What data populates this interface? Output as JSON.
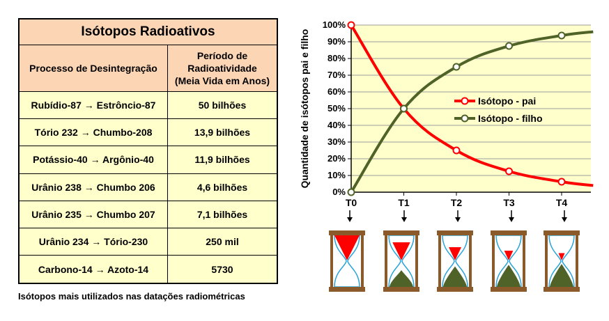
{
  "table": {
    "title": "Isótopos Radioativos",
    "col1_header": "Processo de Desintegração",
    "col2_header_lines": [
      "Período de",
      "Radioatividade",
      "(Meia Vida em Anos)"
    ],
    "rows": [
      {
        "process": "Rubídio-87 → Estrôncio-87",
        "half_life": "50 bilhões"
      },
      {
        "process": "Tório 232 → Chumbo-208",
        "half_life": "13,9 bilhões"
      },
      {
        "process": "Potássio-40 → Argônio-40",
        "half_life": "11,9 bilhões"
      },
      {
        "process": "Urânio 238 → Chumbo 206",
        "half_life": "4,6 bilhões"
      },
      {
        "process": "Urânio 235 → Chumbo 207",
        "half_life": "7,1 bilhões"
      },
      {
        "process": "Urânio 234 → Tório-230",
        "half_life": "250 mil"
      },
      {
        "process": "Carbono-14 → Azoto-14",
        "half_life": "5730"
      }
    ],
    "caption": "Isótopos mais utilizados nas datações radiométricas"
  },
  "colors": {
    "table_header_bg": "#fcd5b5",
    "table_row_bg": "#ffffcc",
    "plot_bg": "#ffffcc",
    "parent_series": "#ff0000",
    "daughter_series": "#4f6228",
    "hourglass_frame": "#8b5a2b"
  },
  "chart_data": {
    "type": "line",
    "ylabel": "Quantidade de isótopos pai e filho",
    "xlabel": "",
    "categories": [
      "T0",
      "T1",
      "T2",
      "T3",
      "T4"
    ],
    "x": [
      0,
      1,
      2,
      3,
      4,
      4.6
    ],
    "ylim": [
      0,
      100
    ],
    "yticks": [
      0,
      10,
      20,
      30,
      40,
      50,
      60,
      70,
      80,
      90,
      100
    ],
    "ytick_labels": [
      "0%",
      "10%",
      "20%",
      "30%",
      "40%",
      "50%",
      "60%",
      "70%",
      "80%",
      "90%",
      "100%"
    ],
    "grid": true,
    "legend_position": "center-right",
    "series": [
      {
        "name": "Isótopo - pai",
        "values": [
          100,
          50,
          25,
          12.5,
          6.25,
          4
        ],
        "marker_count": 5
      },
      {
        "name": "Isótopo - filho",
        "values": [
          0,
          50,
          75,
          87.5,
          93.75,
          96
        ],
        "marker_count": 5
      }
    ]
  },
  "hourglasses": {
    "labels": [
      "T0",
      "T1",
      "T2",
      "T3",
      "T4"
    ],
    "parent_fraction": [
      1.0,
      0.5,
      0.25,
      0.125,
      0.0625
    ],
    "daughter_fraction": [
      0.0,
      0.5,
      0.75,
      0.875,
      0.9375
    ]
  }
}
